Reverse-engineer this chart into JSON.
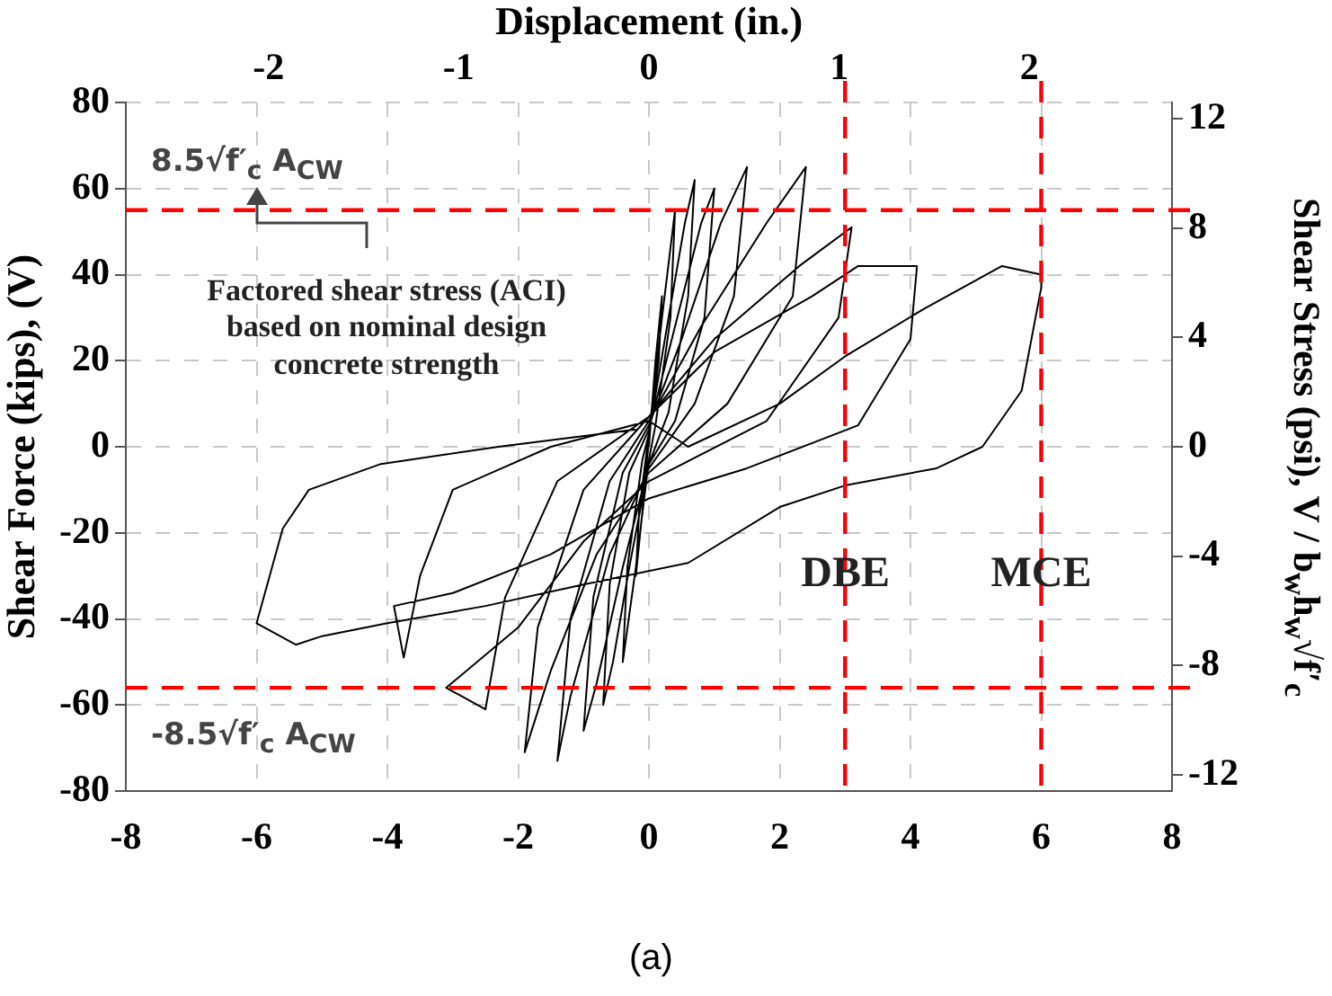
{
  "chart_data": {
    "type": "line",
    "x2label": "Displacement (in.)",
    "ylabel": "Shear Force (kips), (V)",
    "y2label": "Shear Stress (psi), V / b$_{w}$h$_{w}$√f′$_{c}$",
    "x": [
      0,
      0.1,
      0.2,
      0.15,
      0,
      -0.1,
      -0.2,
      -0.15,
      0,
      0.2,
      0.4,
      0.33,
      0.1,
      0,
      -0.2,
      -0.4,
      -0.33,
      -0.1,
      0,
      0.3,
      0.55,
      0.7,
      0.6,
      0.3,
      0,
      -0.3,
      -0.55,
      -0.7,
      -0.6,
      -0.3,
      0,
      0.4,
      0.8,
      1,
      0.85,
      0.4,
      0,
      -0.4,
      -0.8,
      -1,
      -0.85,
      -0.4,
      0,
      0.5,
      1.1,
      1.5,
      1.3,
      0.7,
      0,
      -0.6,
      -1.2,
      -1.4,
      -1.2,
      -0.6,
      0,
      0.8,
      1.8,
      2.4,
      2.2,
      1.2,
      0,
      -0.8,
      -1.5,
      -1.9,
      -1.7,
      -1,
      0,
      1,
      2.3,
      3.1,
      2.9,
      1.8,
      0,
      -1,
      -2,
      -3.1,
      -2.5,
      -2.2,
      -1.4,
      0,
      1,
      2.5,
      3.2,
      4.1,
      4,
      3.2,
      1.5,
      0,
      -1.5,
      -3,
      -3.9,
      -3.75,
      -3.5,
      -3,
      -1.5,
      0,
      0.6,
      2,
      3,
      4.2,
      5.4,
      6,
      6,
      5.7,
      5.1,
      4.4,
      3,
      2,
      0.6,
      -1,
      -2.5,
      -4,
      -5,
      -5.4,
      -6,
      -5.6,
      -5.2,
      -4.1,
      -2.3,
      -0.2
    ],
    "series": [
      {
        "color": "#000000",
        "values": [
          0,
          20,
          35,
          20,
          2,
          -15,
          -30,
          -15,
          3,
          30,
          55,
          30,
          5,
          -3,
          -28,
          -50,
          -28,
          -3,
          3,
          30,
          52,
          62,
          35,
          8,
          -4,
          -28,
          -50,
          -60,
          -32,
          -6,
          4,
          28,
          52,
          60,
          30,
          6,
          -4,
          -28,
          -55,
          -66,
          -35,
          -6,
          5,
          25,
          52,
          65,
          35,
          10,
          -5,
          -25,
          -58,
          -73,
          -40,
          -8,
          6,
          28,
          52,
          65,
          35,
          10,
          -6,
          -25,
          -52,
          -71,
          -42,
          -10,
          7,
          25,
          42,
          51,
          30,
          6,
          -8,
          -22,
          -42,
          -56,
          -61,
          -35,
          -8,
          7,
          22,
          35,
          42,
          42,
          25,
          5,
          -5,
          -12,
          -25,
          -34,
          -37,
          -49,
          -30,
          -10,
          0,
          6,
          0,
          10,
          21,
          32,
          42,
          40,
          37,
          13,
          0,
          -5,
          -9,
          -14,
          -27,
          -32,
          -37,
          -41,
          -44,
          -46,
          -41,
          -19,
          -10,
          -4,
          0,
          4
        ]
      }
    ],
    "xlim": [
      -8,
      8
    ],
    "xticks": [
      -8,
      -6,
      -4,
      -2,
      0,
      2,
      4,
      6,
      8
    ],
    "x2lim": [
      -2.75,
      2.75
    ],
    "x2ticks": [
      -2,
      -1,
      0,
      1,
      2
    ],
    "ylim": [
      -80,
      80
    ],
    "yticks": [
      -80,
      -60,
      -40,
      -20,
      0,
      20,
      40,
      60,
      80
    ],
    "y2lim": [
      -12.6,
      12.6
    ],
    "y2ticks": [
      -12,
      -8,
      -4,
      0,
      4,
      8,
      12
    ],
    "ref_lines": [
      {
        "axis": "y",
        "value": 55,
        "label": "8.5√f′$_{c}$ A$_{CW}$",
        "color": "#ff0000",
        "line_style": "dashed"
      },
      {
        "axis": "y",
        "value": -56,
        "label": "-8.5√f′$_{c}$ A$_{CW}$",
        "color": "#ff0000",
        "line_style": "dashed"
      },
      {
        "axis": "x",
        "value": 3,
        "label": "DBE",
        "color": "#ff0000",
        "line_style": "dashed"
      },
      {
        "axis": "x",
        "value": 6,
        "label": "MCE",
        "color": "#ff0000",
        "line_style": "dashed"
      }
    ],
    "annotations": [
      "Factored shear stress (ACI) based on nominal design concrete strength",
      "(a)"
    ],
    "grid": true,
    "marker": "none",
    "line_style": "solid",
    "legend": false
  }
}
